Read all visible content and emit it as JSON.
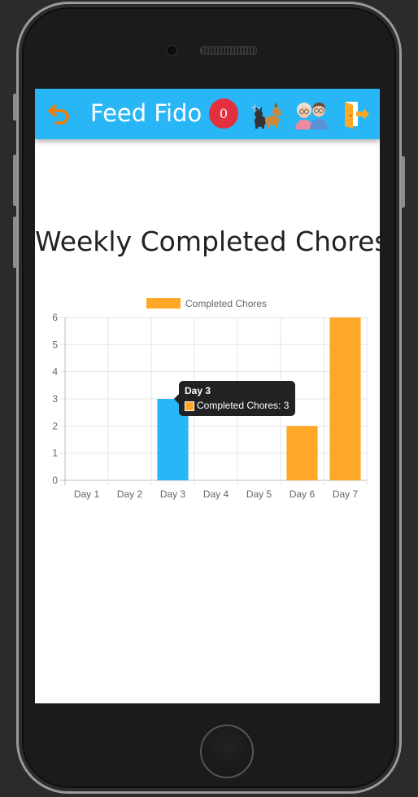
{
  "app": {
    "title": "Feed Fido",
    "notification_count": "0",
    "icons": {
      "back": "undo-arrow-icon",
      "pets": "pets-icon",
      "family": "family-icon",
      "logout": "logout-door-icon"
    }
  },
  "colors": {
    "appbar": "#29b6f6",
    "badge": "#e2303e",
    "bar_default": "#ffa726",
    "bar_hover": "#29b6f6",
    "back_icon": "#f57c00"
  },
  "page": {
    "title": "Weekly Completed Chores"
  },
  "chart_data": {
    "type": "bar",
    "title": "",
    "xlabel": "",
    "ylabel": "",
    "categories": [
      "Day 1",
      "Day 2",
      "Day 3",
      "Day 4",
      "Day 5",
      "Day 6",
      "Day 7"
    ],
    "series": [
      {
        "name": "Completed Chores",
        "values": [
          0,
          0,
          3,
          0,
          0,
          2,
          6
        ]
      }
    ],
    "ylim": [
      0,
      6
    ],
    "yticks": [
      0,
      1,
      2,
      3,
      4,
      5,
      6
    ],
    "grid": true,
    "legend": "top-center",
    "highlighted_index": 2
  },
  "tooltip": {
    "title": "Day 3",
    "label": "Completed Chores: 3"
  }
}
